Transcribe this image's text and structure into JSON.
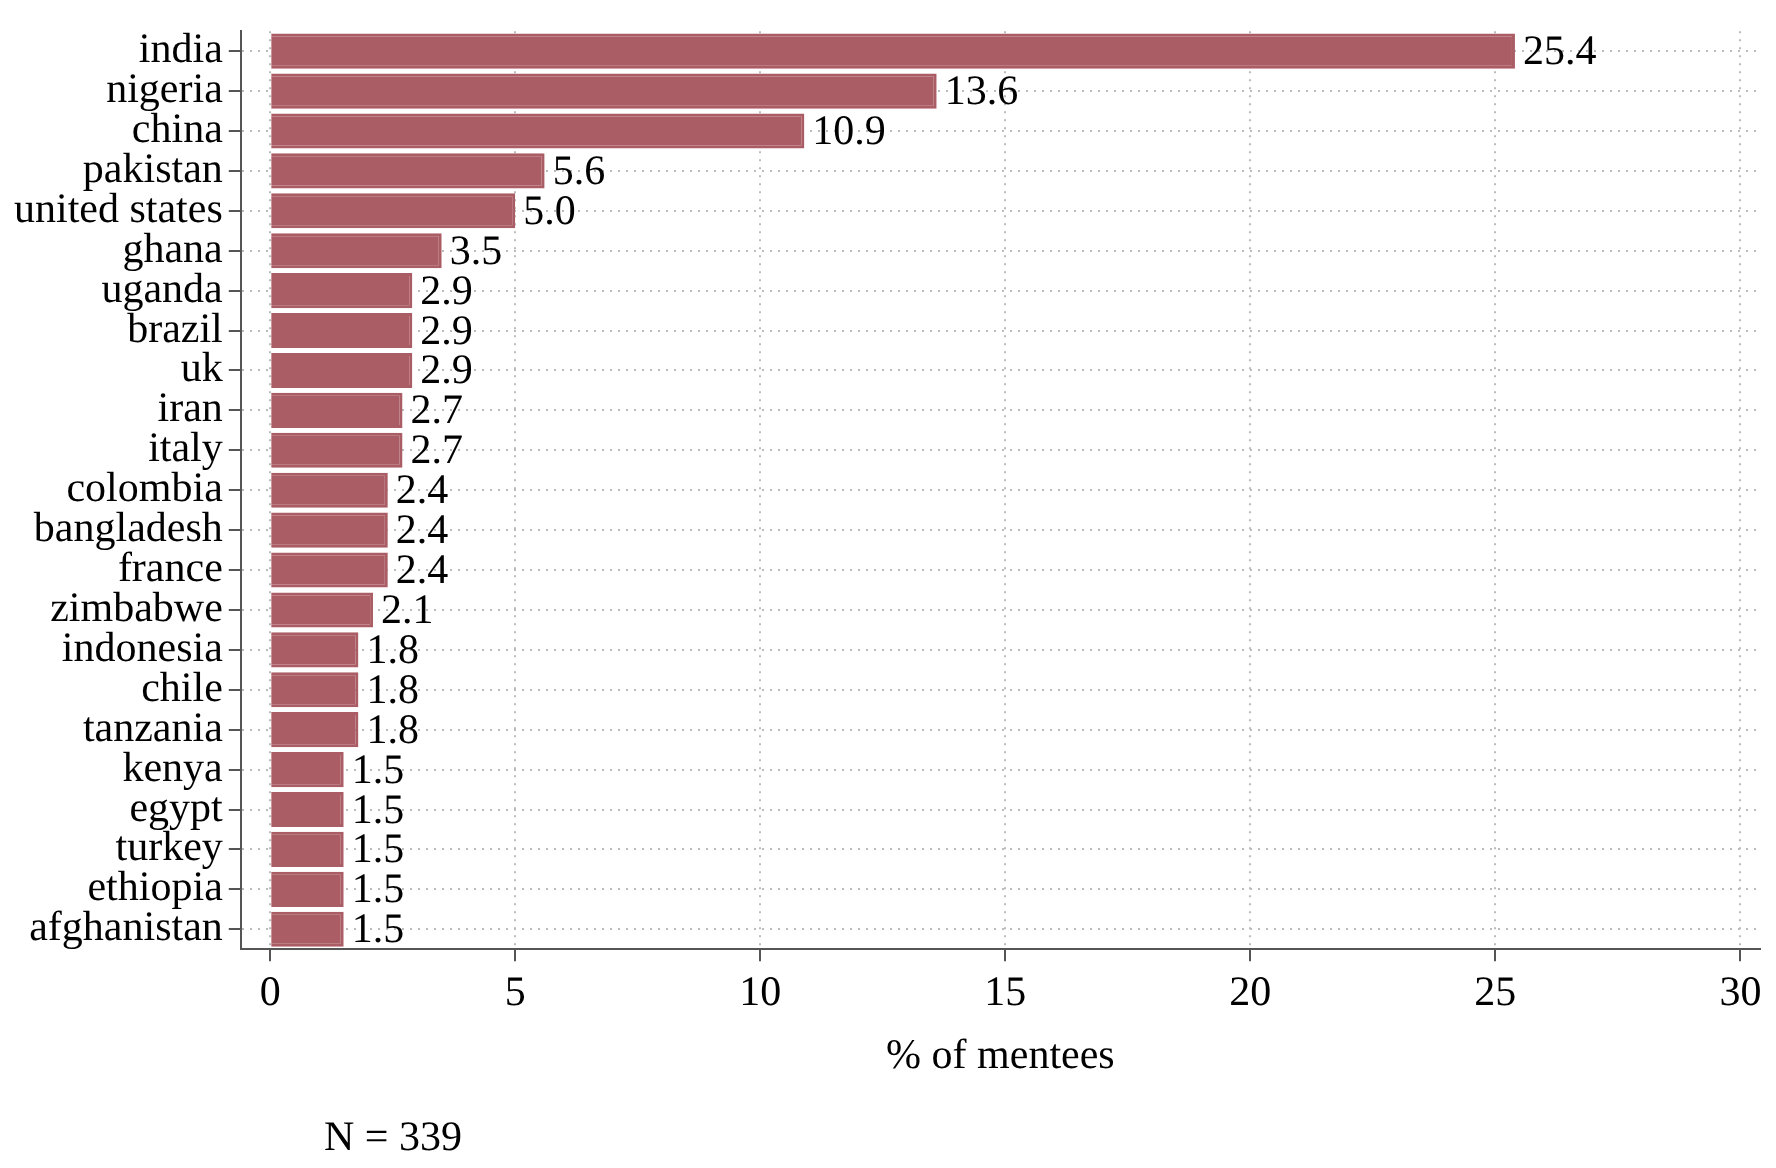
{
  "chart_data": {
    "type": "bar",
    "orientation": "horizontal",
    "categories": [
      "india",
      "nigeria",
      "china",
      "pakistan",
      "united states",
      "ghana",
      "uganda",
      "brazil",
      "uk",
      "iran",
      "italy",
      "colombia",
      "bangladesh",
      "france",
      "zimbabwe",
      "indonesia",
      "chile",
      "tanzania",
      "kenya",
      "egypt",
      "turkey",
      "ethiopia",
      "afghanistan"
    ],
    "values": [
      25.4,
      13.6,
      10.9,
      5.6,
      5.0,
      3.5,
      2.9,
      2.9,
      2.9,
      2.7,
      2.7,
      2.4,
      2.4,
      2.4,
      2.1,
      1.8,
      1.8,
      1.8,
      1.5,
      1.5,
      1.5,
      1.5,
      1.5
    ],
    "value_labels": [
      "25.4",
      "13.6",
      "10.9",
      "5.6",
      "5.0",
      "3.5",
      "2.9",
      "2.9",
      "2.9",
      "2.7",
      "2.7",
      "2.4",
      "2.4",
      "2.4",
      "2.1",
      "1.8",
      "1.8",
      "1.8",
      "1.5",
      "1.5",
      "1.5",
      "1.5",
      "1.5"
    ],
    "color": "#ab5d65",
    "xlabel": "% of mentees",
    "xlim": [
      -0.6,
      30.4
    ],
    "xticks": [
      0,
      5,
      10,
      15,
      20,
      25,
      30
    ],
    "grid": true,
    "legend": false,
    "annotations": [
      "N = 339"
    ]
  }
}
